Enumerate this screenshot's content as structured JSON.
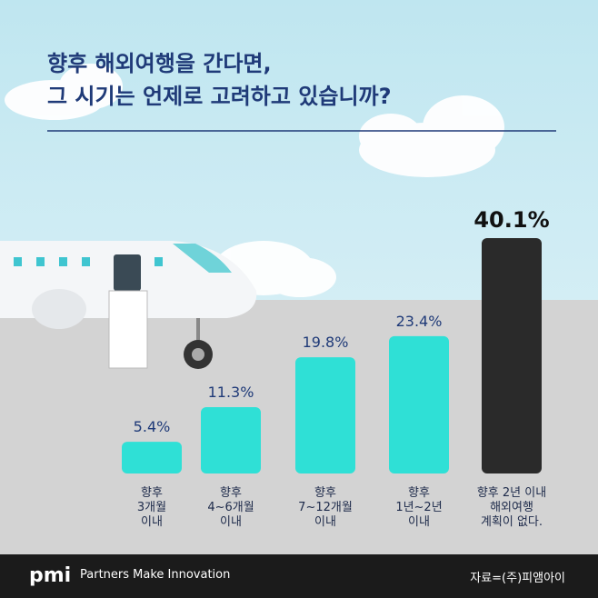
{
  "chart_data": {
    "type": "bar",
    "title": "향후 해외여행을 간다면,\n그 시기는 언제로 고려하고 있습니까?",
    "categories": [
      "향후\n3개월\n이내",
      "향후\n4~6개월\n이내",
      "향후\n7~12개월\n이내",
      "향후\n1년~2년\n이내",
      "향후 2년 이내\n해외여행\n계획이 없다."
    ],
    "values": [
      5.4,
      11.3,
      19.8,
      23.4,
      40.1
    ],
    "value_labels": [
      "5.4%",
      "11.3%",
      "19.8%",
      "23.4%",
      "40.1%"
    ],
    "colors": [
      "#2fe0d6",
      "#2fe0d6",
      "#2fe0d6",
      "#2fe0d6",
      "#2a2a2a"
    ]
  },
  "tagline": "Partners Make Innovation",
  "source": "자료=(주)피앰아이"
}
